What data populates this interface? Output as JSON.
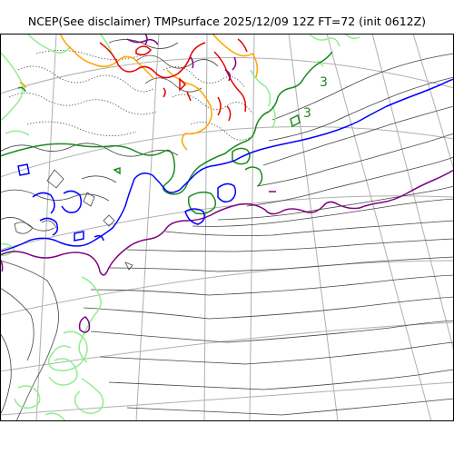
{
  "title": "NCEP(See disclaimer) TMPsurface 2025/12/09 12Z FT=72 (init 0612Z)",
  "contour_labels": [
    "3",
    "3"
  ],
  "colors": {
    "isotherm_minor": "#444444",
    "isotherm_dotted": "#555555",
    "lightgreen": "#90ee90",
    "green": "#1a8a1a",
    "blue": "#0000ff",
    "purple": "#800080",
    "orange": "#ffa500",
    "red": "#e60000",
    "graticule": "#b0b0b0",
    "frame": "#000000"
  }
}
